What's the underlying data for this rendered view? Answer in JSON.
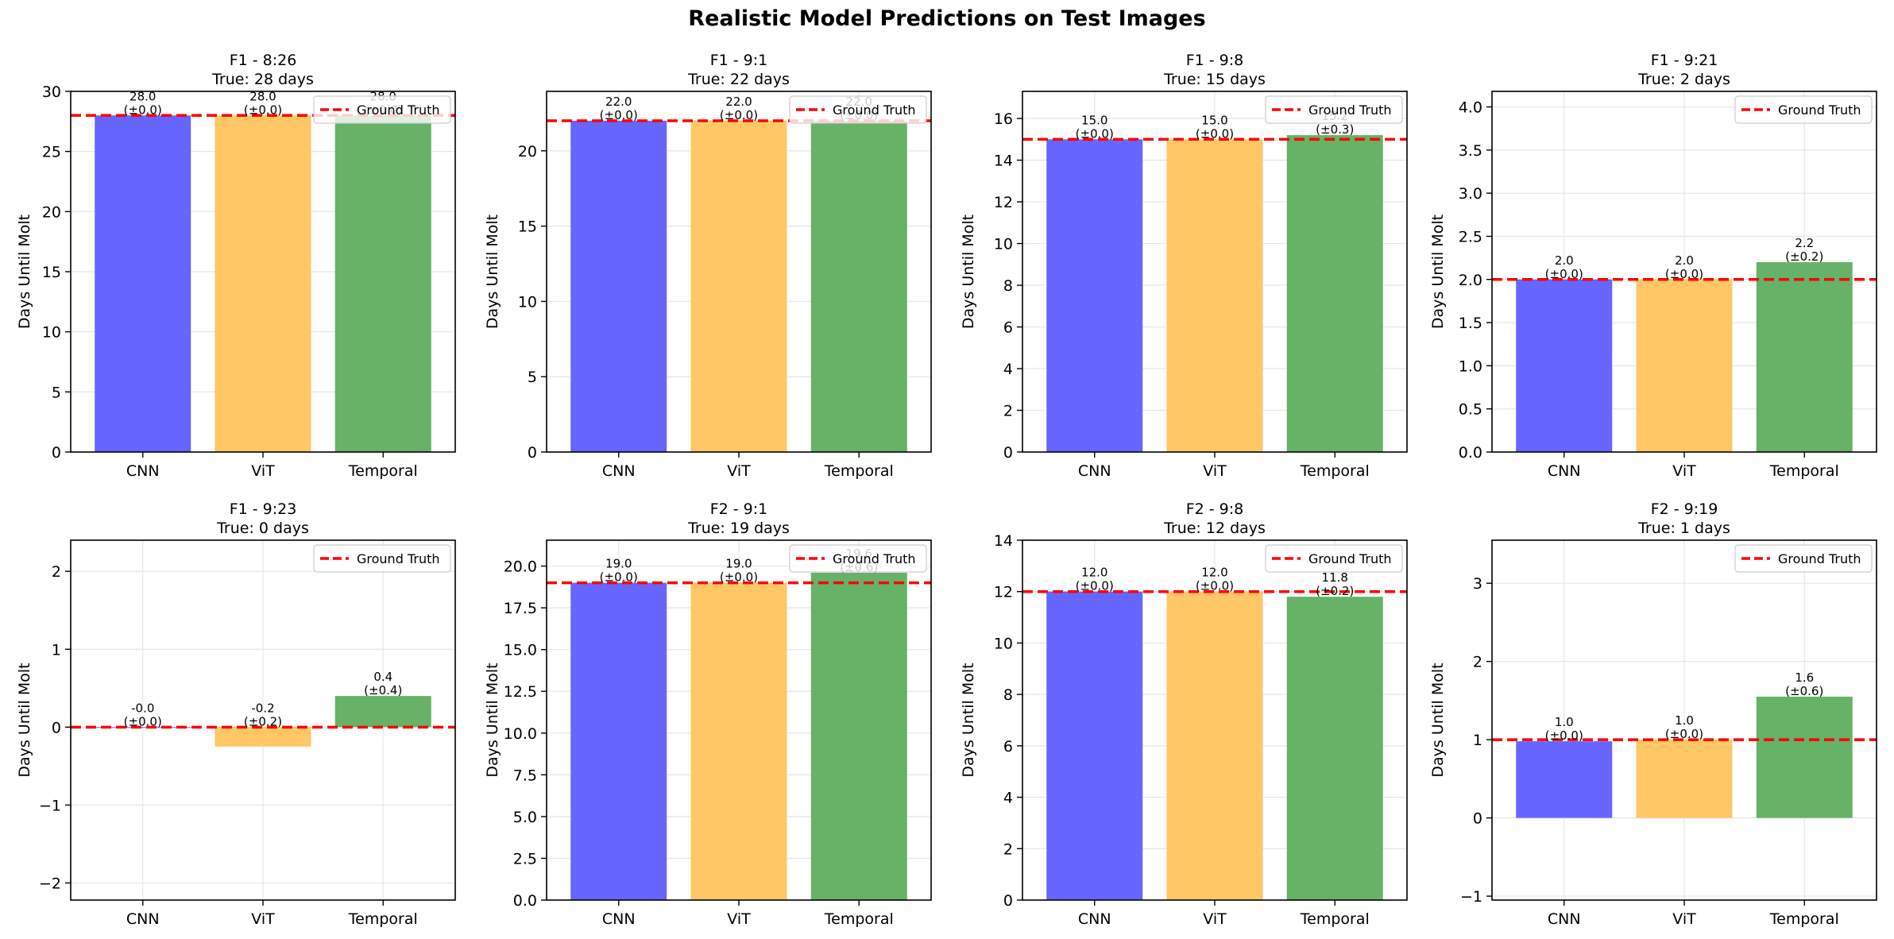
{
  "suptitle": "Realistic Model Predictions on Test Images",
  "colors": {
    "CNN": "#6666ff",
    "ViT": "#ffc766",
    "Temporal": "#66b266",
    "ground_truth": "#ff0000",
    "grid": "#e6e6e6"
  },
  "chart_data": [
    {
      "type": "bar",
      "title": "F1 - 8:26",
      "subtitle": "True: 28 days",
      "categories": [
        "CNN",
        "ViT",
        "Temporal"
      ],
      "values": [
        28.0,
        28.0,
        28.0
      ],
      "value_labels": [
        "28.0",
        "28.0",
        "28.0"
      ],
      "error_labels": [
        "(±0.0)",
        "(±0.0)",
        "(±0.0)"
      ],
      "ground_truth": 28,
      "ylabel": "Days Until Molt",
      "ylim": [
        0,
        30
      ],
      "yticks": [
        0,
        5,
        10,
        15,
        20,
        25,
        30
      ],
      "ytick_labels": [
        "0",
        "5",
        "10",
        "15",
        "20",
        "25",
        "30"
      ],
      "legend": "Ground Truth",
      "legend_position": "top-right",
      "grid": true
    },
    {
      "type": "bar",
      "title": "F1 - 9:1",
      "subtitle": "True: 22 days",
      "categories": [
        "CNN",
        "ViT",
        "Temporal"
      ],
      "values": [
        22.0,
        22.0,
        22.0
      ],
      "value_labels": [
        "22.0",
        "22.0",
        "22.0"
      ],
      "error_labels": [
        "(±0.0)",
        "(±0.0)",
        "(±0.0)"
      ],
      "ground_truth": 22,
      "ylabel": "Days Until Molt",
      "ylim": [
        0,
        23.95
      ],
      "yticks": [
        0,
        5,
        10,
        15,
        20
      ],
      "ytick_labels": [
        "0",
        "5",
        "10",
        "15",
        "20"
      ],
      "legend": "Ground Truth",
      "legend_position": "top-right",
      "grid": true
    },
    {
      "type": "bar",
      "title": "F1 - 9:8",
      "subtitle": "True: 15 days",
      "categories": [
        "CNN",
        "ViT",
        "Temporal"
      ],
      "values": [
        15.0,
        15.0,
        15.2
      ],
      "value_labels": [
        "15.0",
        "15.0",
        "15.2"
      ],
      "error_labels": [
        "(±0.0)",
        "(±0.0)",
        "(±0.3)"
      ],
      "ground_truth": 15,
      "ylabel": "Days Until Molt",
      "ylim": [
        0,
        17.3
      ],
      "yticks": [
        0,
        2,
        4,
        6,
        8,
        10,
        12,
        14,
        16
      ],
      "ytick_labels": [
        "0",
        "2",
        "4",
        "6",
        "8",
        "10",
        "12",
        "14",
        "16"
      ],
      "legend": "Ground Truth",
      "legend_position": "top-right",
      "grid": true
    },
    {
      "type": "bar",
      "title": "F1 - 9:21",
      "subtitle": "True: 2 days",
      "categories": [
        "CNN",
        "ViT",
        "Temporal"
      ],
      "values": [
        2.0,
        2.0,
        2.2
      ],
      "value_labels": [
        "2.0",
        "2.0",
        "2.2"
      ],
      "error_labels": [
        "(±0.0)",
        "(±0.0)",
        "(±0.2)"
      ],
      "ground_truth": 2,
      "ylabel": "Days Until Molt",
      "ylim": [
        0,
        4.18
      ],
      "yticks": [
        0,
        0.5,
        1.0,
        1.5,
        2.0,
        2.5,
        3.0,
        3.5,
        4.0
      ],
      "ytick_labels": [
        "0.0",
        "0.5",
        "1.0",
        "1.5",
        "2.0",
        "2.5",
        "3.0",
        "3.5",
        "4.0"
      ],
      "legend": "Ground Truth",
      "legend_position": "top-right",
      "grid": true
    },
    {
      "type": "bar",
      "title": "F1 - 9:23",
      "subtitle": "True: 0 days",
      "categories": [
        "CNN",
        "ViT",
        "Temporal"
      ],
      "values": [
        -0.01,
        -0.25,
        0.4
      ],
      "value_labels": [
        "-0.0",
        "-0.2",
        "0.4"
      ],
      "error_labels": [
        "(±0.0)",
        "(±0.2)",
        "(±0.4)"
      ],
      "ground_truth": 0,
      "ylabel": "Days Until Molt",
      "ylim": [
        -2.22,
        2.4
      ],
      "yticks": [
        -2,
        -1,
        0,
        1,
        2
      ],
      "ytick_labels": [
        "−2",
        "−1",
        "0",
        "1",
        "2"
      ],
      "legend": "Ground Truth",
      "legend_position": "top-right",
      "grid": true
    },
    {
      "type": "bar",
      "title": "F2 - 9:1",
      "subtitle": "True: 19 days",
      "categories": [
        "CNN",
        "ViT",
        "Temporal"
      ],
      "values": [
        19.0,
        19.0,
        19.6
      ],
      "value_labels": [
        "19.0",
        "19.0",
        "19.6"
      ],
      "error_labels": [
        "(±0.0)",
        "(±0.0)",
        "(±0.6)"
      ],
      "ground_truth": 19,
      "ylabel": "Days Until Molt",
      "ylim": [
        0,
        21.55
      ],
      "yticks": [
        0,
        2.5,
        5.0,
        7.5,
        10.0,
        12.5,
        15.0,
        17.5,
        20.0
      ],
      "ytick_labels": [
        "0.0",
        "2.5",
        "5.0",
        "7.5",
        "10.0",
        "12.5",
        "15.0",
        "17.5",
        "20.0"
      ],
      "legend": "Ground Truth",
      "legend_position": "top-right",
      "grid": true
    },
    {
      "type": "bar",
      "title": "F2 - 9:8",
      "subtitle": "True: 12 days",
      "categories": [
        "CNN",
        "ViT",
        "Temporal"
      ],
      "values": [
        12.0,
        12.0,
        11.8
      ],
      "value_labels": [
        "12.0",
        "12.0",
        "11.8"
      ],
      "error_labels": [
        "(±0.0)",
        "(±0.0)",
        "(±0.2)"
      ],
      "ground_truth": 12,
      "ylabel": "Days Until Molt",
      "ylim": [
        0,
        14
      ],
      "yticks": [
        0,
        2,
        4,
        6,
        8,
        10,
        12,
        14
      ],
      "ytick_labels": [
        "0",
        "2",
        "4",
        "6",
        "8",
        "10",
        "12",
        "14"
      ],
      "legend": "Ground Truth",
      "legend_position": "top-right",
      "grid": true
    },
    {
      "type": "bar",
      "title": "F2 - 9:19",
      "subtitle": "True: 1 days",
      "categories": [
        "CNN",
        "ViT",
        "Temporal"
      ],
      "values": [
        0.98,
        1.0,
        1.55
      ],
      "value_labels": [
        "1.0",
        "1.0",
        "1.6"
      ],
      "error_labels": [
        "(±0.0)",
        "(±0.0)",
        "(±0.6)"
      ],
      "ground_truth": 1,
      "ylabel": "Days Until Molt",
      "ylim": [
        -1.05,
        3.55
      ],
      "yticks": [
        -1,
        0,
        1,
        2,
        3
      ],
      "ytick_labels": [
        "−1",
        "0",
        "1",
        "2",
        "3"
      ],
      "legend": "Ground Truth",
      "legend_position": "top-right",
      "grid": true
    }
  ]
}
